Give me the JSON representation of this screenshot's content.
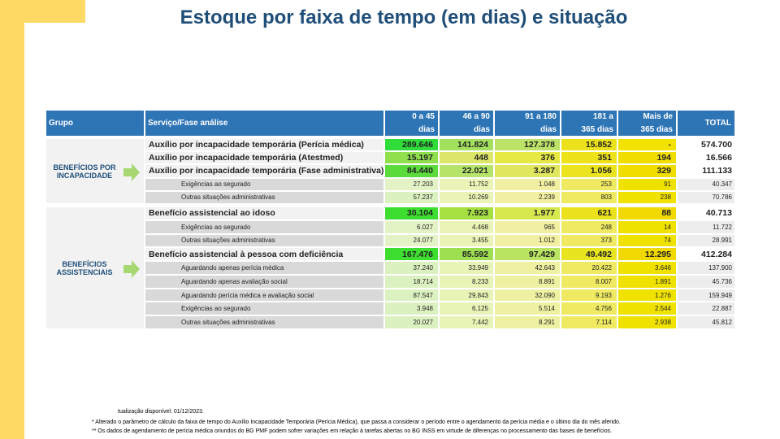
{
  "header": {
    "title": "Estoque por faixa de tempo (em dias) e situação"
  },
  "table": {
    "columns": [
      "Grupo",
      "Serviço/Fase análise",
      "0 a 45 dias",
      "46 a 90 dias",
      "91 a 180 dias",
      "181 a 365 dias",
      "Mais de 365  dias",
      "TOTAL"
    ],
    "groups": [
      {
        "label": "BENEFÍCIOS POR INCAPACIDADE",
        "rows": [
          {
            "service": "Auxílio por incapacidade temporária (Perícia médica)",
            "bold": true,
            "values": [
              "289.646",
              "141.824",
              "127.378",
              "15.852",
              "-"
            ],
            "total": "574.700",
            "colors": [
              "#2fdc3a",
              "#a3e05e",
              "#bde268",
              "#ece21c",
              "#f2e200"
            ]
          },
          {
            "service": "Auxílio por incapacidade temporária (Atestmed)",
            "bold": true,
            "values": [
              "15.197",
              "448",
              "376",
              "351",
              "194"
            ],
            "total": "16.566",
            "colors": [
              "#8fe04c",
              "#dde86a",
              "#e6e844",
              "#eee21a",
              "#f0de00"
            ]
          },
          {
            "service": "Auxílio por incapacidade temporária (Fase administrativa)",
            "bold": true,
            "values": [
              "84.440",
              "22.021",
              "3.287",
              "1.056",
              "329"
            ],
            "total": "111.133",
            "colors": [
              "#5cdb3c",
              "#b6e46a",
              "#e0e75e",
              "#ece41e",
              "#f0de00"
            ]
          },
          {
            "service": "Exigências ao segurado",
            "bold": false,
            "values": [
              "27.203",
              "11.752",
              "1.048",
              "253",
              "91"
            ],
            "total": "40.347",
            "colors": [
              "#e4f3c6",
              "#ecf3b6",
              "#f1f0a2",
              "#efea62",
              "#f0e200"
            ]
          },
          {
            "service": "Outras situações administrativas",
            "bold": false,
            "values": [
              "57.237",
              "10.269",
              "2.239",
              "803",
              "238"
            ],
            "total": "70.786",
            "colors": [
              "#dcf1c0",
              "#ecf3b6",
              "#f1f0a2",
              "#efea62",
              "#f0e200"
            ]
          }
        ]
      },
      {
        "label": "BENEFÍCIOS ASSISTENCIAIS",
        "rows": [
          {
            "service": "Benefício assistencial ao idoso",
            "bold": true,
            "values": [
              "30.104",
              "7.923",
              "1.977",
              "621",
              "88"
            ],
            "total": "40.713",
            "colors": [
              "#3ede30",
              "#a6e040",
              "#d6e84e",
              "#ece21c",
              "#f0d800"
            ]
          },
          {
            "service": "Exigências ao segurado",
            "bold": false,
            "values": [
              "6.027",
              "4.468",
              "965",
              "248",
              "14"
            ],
            "total": "11.722",
            "colors": [
              "#e4f3c6",
              "#ecf3b6",
              "#f1f0a2",
              "#efea62",
              "#f0e200"
            ]
          },
          {
            "service": "Outras situações administrativas",
            "bold": false,
            "values": [
              "24.077",
              "3.455",
              "1.012",
              "373",
              "74"
            ],
            "total": "28.991",
            "colors": [
              "#e4f3c6",
              "#ecf3b6",
              "#f1f0a2",
              "#efea62",
              "#f0e200"
            ]
          },
          {
            "service": "Benefício assistencial à pessoa com deficiência",
            "bold": true,
            "values": [
              "167.476",
              "85.592",
              "97.429",
              "49.492",
              "12.295"
            ],
            "total": "412.284",
            "colors": [
              "#3ede30",
              "#9edf52",
              "#b8e462",
              "#e8e420",
              "#f0d800"
            ]
          },
          {
            "service": "Aguardando apenas perícia médica",
            "bold": false,
            "values": [
              "37.240",
              "33.949",
              "42.643",
              "20.422",
              "3.646"
            ],
            "total": "137.900",
            "colors": [
              "#dcf1c0",
              "#e8f3b6",
              "#eef1a2",
              "#efea62",
              "#f0e200"
            ]
          },
          {
            "service": "Aguardando apenas avaliação social",
            "bold": false,
            "values": [
              "18.714",
              "8.233",
              "8.891",
              "8.007",
              "1.891"
            ],
            "total": "45.736",
            "colors": [
              "#dcf1c0",
              "#e8f3b6",
              "#eef1a2",
              "#efea62",
              "#f0e200"
            ]
          },
          {
            "service": "Aguardando perícia médica e avaliação social",
            "bold": false,
            "values": [
              "87.547",
              "29.843",
              "32.090",
              "9.193",
              "1.276"
            ],
            "total": "159.949",
            "colors": [
              "#dcf1c0",
              "#e8f3b6",
              "#eef1a2",
              "#efea62",
              "#f0e200"
            ]
          },
          {
            "service": "Exigências ao segurado",
            "bold": false,
            "values": [
              "3.948",
              "6.125",
              "5.514",
              "4.756",
              "2.544"
            ],
            "total": "22.887",
            "colors": [
              "#dcf1c0",
              "#e8f3b6",
              "#eef1a2",
              "#efea62",
              "#f0e200"
            ]
          },
          {
            "service": "Outras situações administrativas",
            "bold": false,
            "values": [
              "20.027",
              "7.442",
              "8.291",
              "7.114",
              "2.938"
            ],
            "total": "45.812",
            "colors": [
              "#dcf1c0",
              "#e8f3b6",
              "#eef1a2",
              "#efea62",
              "#f0e200"
            ]
          }
        ]
      }
    ]
  },
  "footnotes": [
    "tualização disponível:  01/12/2023.",
    "* Alterado o parâmetro de cálculo da faixa de tempo do Auxílio Incapacidade Temporária (Perícia Médica), que passa a considerar o período entre o agendamento da perícia média e o último dia do mês aferido.",
    "** Os dados de agendamento de perícia médica oriundos do BG PMF podem sofrer variações em relação à tarefas abertas no BG INSS em virtude de diferenças no processamento das bases de benefícios."
  ]
}
